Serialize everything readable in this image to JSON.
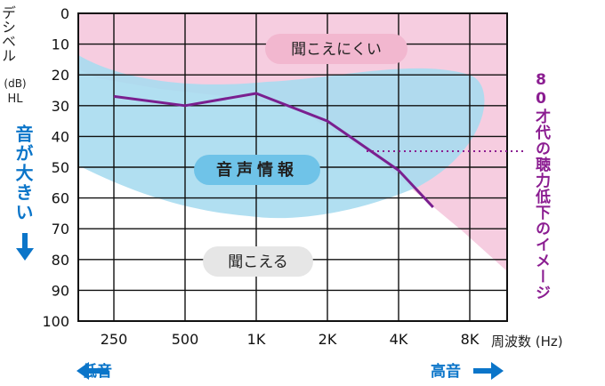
{
  "chart_data": {
    "type": "line",
    "ylabel_text": "デシベル",
    "ylabel_unit1": "(dB)",
    "ylabel_unit2": "HL",
    "y_ticks": [
      0,
      10,
      20,
      30,
      40,
      50,
      60,
      70,
      80,
      90,
      100
    ],
    "ylim": [
      0,
      100
    ],
    "y_inverted": true,
    "x_ticks": [
      "250",
      "500",
      "1K",
      "2K",
      "4K",
      "8K"
    ],
    "xlabel": "周波数 (Hz)",
    "grid": true,
    "series": [
      {
        "name": "",
        "color": "#7a1f8f",
        "points": [
          {
            "x": "250",
            "y": 27
          },
          {
            "x": "500",
            "y": 30
          },
          {
            "x": "1K",
            "y": 26
          },
          {
            "x": "2K",
            "y": 35
          },
          {
            "x": "4K",
            "y": 51
          },
          {
            "x": "5.6K",
            "y": 63
          }
        ]
      }
    ],
    "regions": [
      {
        "label": "聞こえにくい",
        "color": "#f6cde0"
      },
      {
        "label": "音声情報",
        "color": "#9ed8ef"
      },
      {
        "label": "聞こえる",
        "color": "#eeeeee"
      }
    ],
    "annotation": "80才代の聴力低下のイメージ",
    "side_label_loud": "音が大きい",
    "bottom_label_low": "低音",
    "bottom_label_high": "高音"
  },
  "colors": {
    "pink_region": "#f6cde0",
    "blue_region": "#a8dcf0",
    "line": "#7a1f8f",
    "accent_blue": "#0b75c9",
    "annotation": "#8b1d91"
  }
}
